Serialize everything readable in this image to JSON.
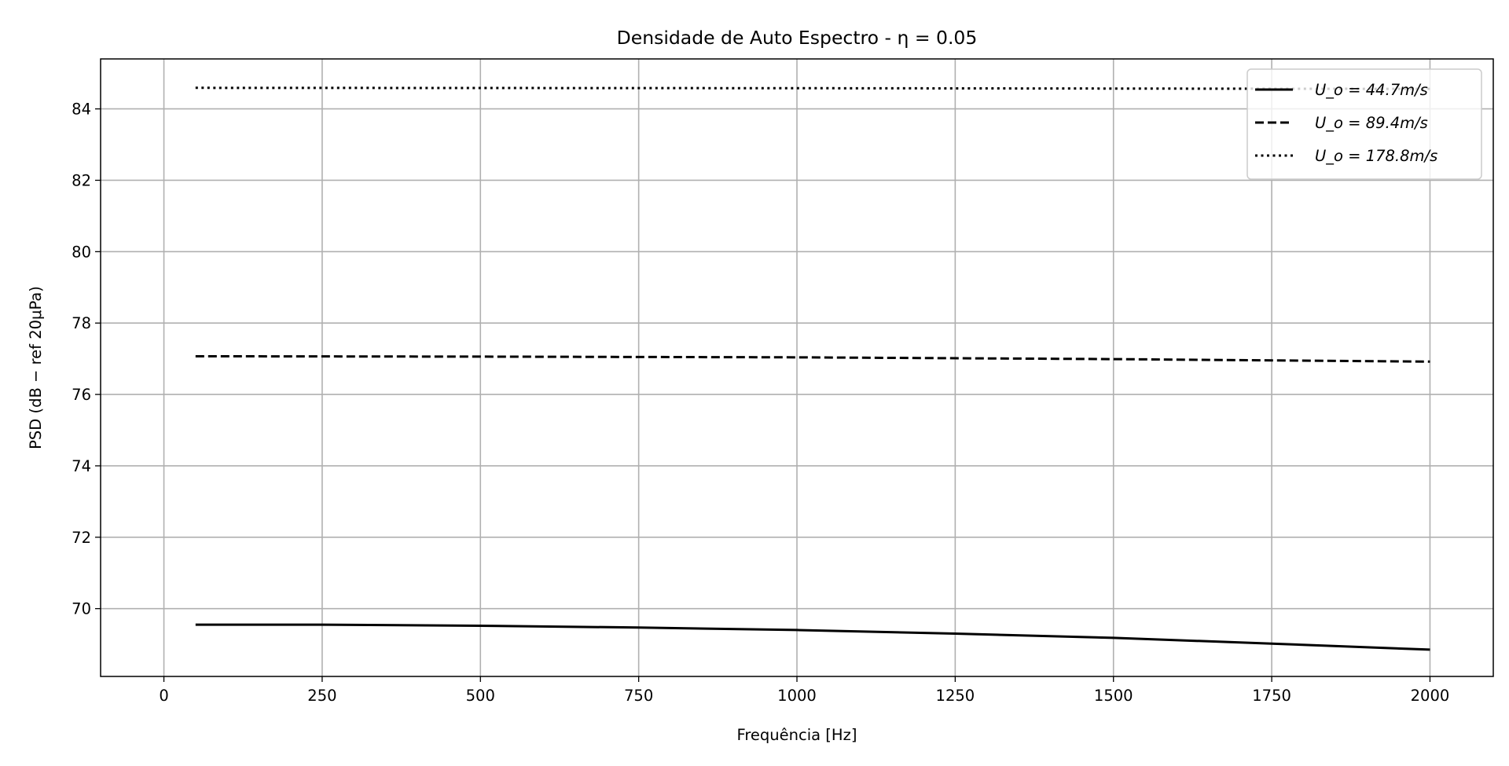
{
  "chart_data": {
    "type": "line",
    "title": "Densidade de Auto Espectro - η = 0.05",
    "xlabel": "Frequência [Hz]",
    "ylabel": "PSD (dB − ref 20μPa)",
    "xlim": [
      -100,
      2100
    ],
    "ylim": [
      68.1,
      85.4
    ],
    "xticks": [
      0,
      250,
      500,
      750,
      1000,
      1250,
      1500,
      1750,
      2000
    ],
    "yticks": [
      70,
      72,
      74,
      76,
      78,
      80,
      82,
      84
    ],
    "grid": true,
    "legend_position": "top-right",
    "series": [
      {
        "name": "U_o = 44.7m/s",
        "line_style": "solid",
        "color": "#000000",
        "x": [
          50,
          250,
          500,
          750,
          1000,
          1250,
          1500,
          1750,
          2000
        ],
        "y": [
          69.55,
          69.55,
          69.52,
          69.47,
          69.4,
          69.3,
          69.18,
          69.02,
          68.85
        ]
      },
      {
        "name": "U_o = 89.4m/s",
        "line_style": "dashed",
        "color": "#000000",
        "x": [
          50,
          500,
          1000,
          1500,
          2000
        ],
        "y": [
          77.07,
          77.06,
          77.04,
          76.99,
          76.92
        ]
      },
      {
        "name": "U_o = 178.8m/s",
        "line_style": "dotted",
        "color": "#000000",
        "x": [
          50,
          1000,
          2000
        ],
        "y": [
          84.59,
          84.58,
          84.56
        ]
      }
    ]
  }
}
